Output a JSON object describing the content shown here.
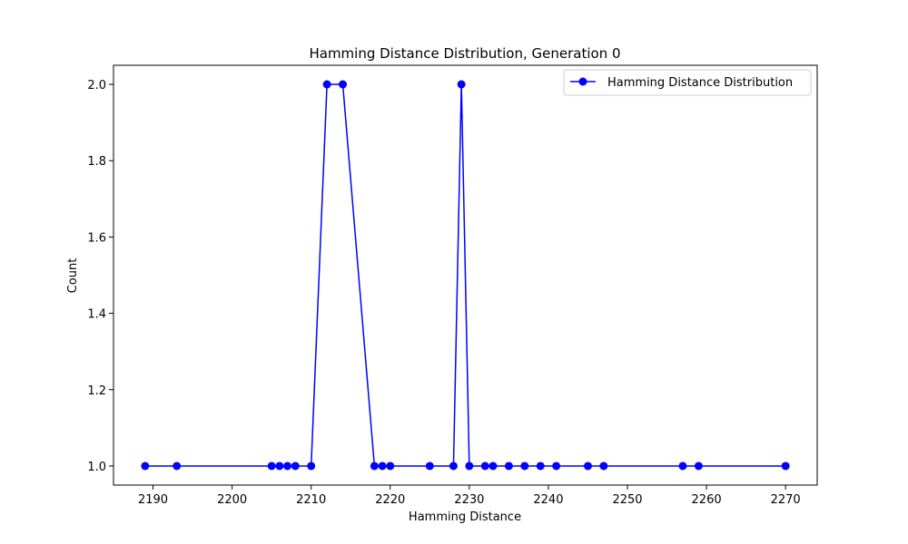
{
  "chart_data": {
    "type": "line",
    "title": "Hamming Distance Distribution, Generation 0",
    "xlabel": "Hamming Distance",
    "ylabel": "Count",
    "xlim": [
      2185,
      2274
    ],
    "ylim": [
      0.95,
      2.05
    ],
    "xticks": [
      2190,
      2200,
      2210,
      2220,
      2230,
      2240,
      2250,
      2260,
      2270
    ],
    "yticks": [
      1.0,
      1.2,
      1.4,
      1.6,
      1.8,
      2.0
    ],
    "grid": false,
    "legend": "upper-right",
    "series": [
      {
        "name": "Hamming Distance Distribution",
        "color": "#0000ff",
        "marker": "circle",
        "x": [
          2189,
          2193,
          2205,
          2206,
          2207,
          2208,
          2210,
          2212,
          2214,
          2218,
          2219,
          2220,
          2225,
          2228,
          2229,
          2230,
          2232,
          2233,
          2235,
          2237,
          2239,
          2241,
          2245,
          2247,
          2257,
          2259,
          2270
        ],
        "y": [
          1,
          1,
          1,
          1,
          1,
          1,
          1,
          2,
          2,
          1,
          1,
          1,
          1,
          1,
          2,
          1,
          1,
          1,
          1,
          1,
          1,
          1,
          1,
          1,
          1,
          1,
          1
        ]
      }
    ]
  }
}
